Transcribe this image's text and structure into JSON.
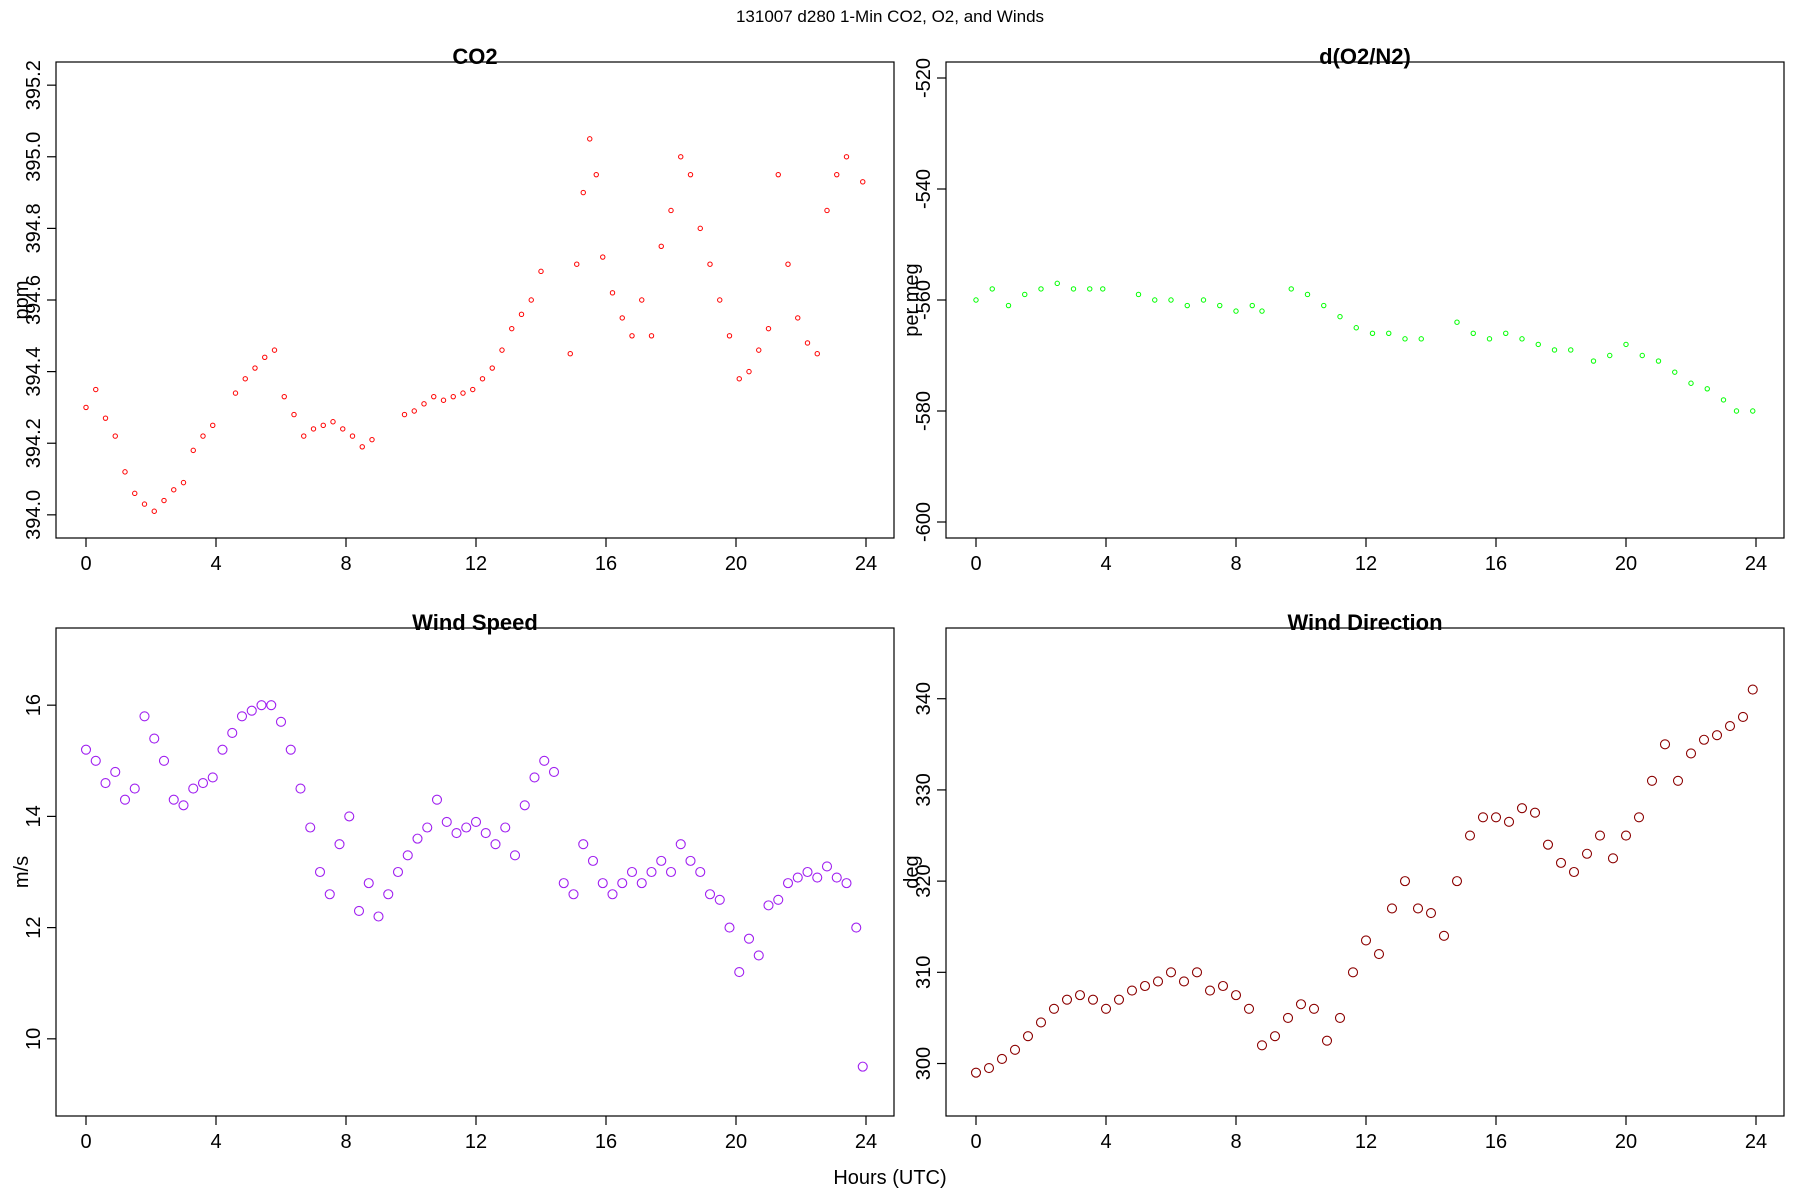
{
  "figure_title": "131007   d280   1-Min CO2, O2, and Winds",
  "shared_xlabel": "Hours (UTC)",
  "chart_data": [
    {
      "id": "co2",
      "type": "scatter",
      "title": "CO2",
      "xlabel": "",
      "ylabel": "ppm",
      "color": "#ff0000",
      "marker": "open-circle",
      "xlim": [
        0,
        24
      ],
      "ylim": [
        393.98,
        395.22
      ],
      "xticks": [
        0,
        4,
        8,
        12,
        16,
        20,
        24
      ],
      "yticks": [
        394.0,
        394.2,
        394.4,
        394.6,
        394.8,
        395.0,
        395.2
      ],
      "ytick_labels": [
        "394.0",
        "394.2",
        "394.4",
        "394.6",
        "394.8",
        "395.0",
        "395.2"
      ],
      "x": [
        0.0,
        0.3,
        0.6,
        0.9,
        1.2,
        1.5,
        1.8,
        2.1,
        2.4,
        2.7,
        3.0,
        3.3,
        3.6,
        3.9,
        4.6,
        4.9,
        5.2,
        5.5,
        5.8,
        6.1,
        6.4,
        6.7,
        7.0,
        7.3,
        7.6,
        7.9,
        8.2,
        8.5,
        8.8,
        9.8,
        10.1,
        10.4,
        10.7,
        11.0,
        11.3,
        11.6,
        11.9,
        12.2,
        12.5,
        12.8,
        13.1,
        13.4,
        13.7,
        14.0,
        14.9,
        15.1,
        15.3,
        15.5,
        15.7,
        15.9,
        16.2,
        16.5,
        16.8,
        17.1,
        17.4,
        17.7,
        18.0,
        18.3,
        18.6,
        18.9,
        19.2,
        19.5,
        19.8,
        20.1,
        20.4,
        20.7,
        21.0,
        21.3,
        21.6,
        21.9,
        22.2,
        22.5,
        22.8,
        23.1,
        23.4,
        23.9
      ],
      "y": [
        394.3,
        394.35,
        394.27,
        394.22,
        394.12,
        394.06,
        394.03,
        394.01,
        394.04,
        394.07,
        394.09,
        394.18,
        394.22,
        394.25,
        394.34,
        394.38,
        394.41,
        394.44,
        394.46,
        394.33,
        394.28,
        394.22,
        394.24,
        394.25,
        394.26,
        394.24,
        394.22,
        394.19,
        394.21,
        394.28,
        394.29,
        394.31,
        394.33,
        394.32,
        394.33,
        394.34,
        394.35,
        394.38,
        394.41,
        394.46,
        394.52,
        394.56,
        394.6,
        394.68,
        394.45,
        394.7,
        394.9,
        395.05,
        394.95,
        394.72,
        394.62,
        394.55,
        394.5,
        394.6,
        394.5,
        394.75,
        394.85,
        395.0,
        394.95,
        394.8,
        394.7,
        394.6,
        394.5,
        394.38,
        394.4,
        394.46,
        394.52,
        394.95,
        394.7,
        394.55,
        394.48,
        394.45,
        394.85,
        394.95,
        395.0,
        394.93
      ]
    },
    {
      "id": "o2n2",
      "type": "scatter",
      "title": "d(O2/N2)",
      "xlabel": "",
      "ylabel": "per meg",
      "color": "#00ff00",
      "marker": "open-circle",
      "xlim": [
        0,
        24
      ],
      "ylim": [
        -600,
        -520
      ],
      "xticks": [
        0,
        4,
        8,
        12,
        16,
        20,
        24
      ],
      "yticks": [
        -600,
        -580,
        -560,
        -540,
        -520
      ],
      "ytick_labels": [
        "-600",
        "-580",
        "-560",
        "-540",
        "-520"
      ],
      "x": [
        0.0,
        0.5,
        1.0,
        1.5,
        2.0,
        2.5,
        3.0,
        3.5,
        3.9,
        5.0,
        5.5,
        6.0,
        6.5,
        7.0,
        7.5,
        8.0,
        8.5,
        8.8,
        9.7,
        10.2,
        10.7,
        11.2,
        11.7,
        12.2,
        12.7,
        13.2,
        13.7,
        14.8,
        15.3,
        15.8,
        16.3,
        16.8,
        17.3,
        17.8,
        18.3,
        19.0,
        19.5,
        20.0,
        20.5,
        21.0,
        21.5,
        22.0,
        22.5,
        23.0,
        23.4,
        23.9
      ],
      "y": [
        -560,
        -558,
        -561,
        -559,
        -558,
        -557,
        -558,
        -558,
        -558,
        -559,
        -560,
        -560,
        -561,
        -560,
        -561,
        -562,
        -561,
        -562,
        -558,
        -559,
        -561,
        -563,
        -565,
        -566,
        -566,
        -567,
        -567,
        -564,
        -566,
        -567,
        -566,
        -567,
        -568,
        -569,
        -569,
        -571,
        -570,
        -568,
        -570,
        -571,
        -573,
        -575,
        -576,
        -578,
        -580,
        -580
      ]
    },
    {
      "id": "wspd",
      "type": "scatter",
      "title": "Wind Speed",
      "xlabel": "",
      "ylabel": "m/s",
      "color": "#a020f0",
      "marker": "open-circle",
      "xlim": [
        0,
        24
      ],
      "ylim": [
        8.9,
        17.1
      ],
      "xticks": [
        0,
        4,
        8,
        12,
        16,
        20,
        24
      ],
      "yticks": [
        10,
        12,
        14,
        16
      ],
      "ytick_labels": [
        "10",
        "12",
        "14",
        "16"
      ],
      "x": [
        0.0,
        0.3,
        0.6,
        0.9,
        1.2,
        1.5,
        1.8,
        2.1,
        2.4,
        2.7,
        3.0,
        3.3,
        3.6,
        3.9,
        4.2,
        4.5,
        4.8,
        5.1,
        5.4,
        5.7,
        6.0,
        6.3,
        6.6,
        6.9,
        7.2,
        7.5,
        7.8,
        8.1,
        8.4,
        8.7,
        9.0,
        9.3,
        9.6,
        9.9,
        10.2,
        10.5,
        10.8,
        11.1,
        11.4,
        11.7,
        12.0,
        12.3,
        12.6,
        12.9,
        13.2,
        13.5,
        13.8,
        14.1,
        14.4,
        14.7,
        15.0,
        15.3,
        15.6,
        15.9,
        16.2,
        16.5,
        16.8,
        17.1,
        17.4,
        17.7,
        18.0,
        18.3,
        18.6,
        18.9,
        19.2,
        19.5,
        19.8,
        20.1,
        20.4,
        20.7,
        21.0,
        21.3,
        21.6,
        21.9,
        22.2,
        22.5,
        22.8,
        23.1,
        23.4,
        23.7,
        23.9
      ],
      "y": [
        15.2,
        15.0,
        14.6,
        14.8,
        14.3,
        14.5,
        15.8,
        15.4,
        15.0,
        14.3,
        14.2,
        14.5,
        14.6,
        14.7,
        15.2,
        15.5,
        15.8,
        15.9,
        16.0,
        16.0,
        15.7,
        15.2,
        14.5,
        13.8,
        13.0,
        12.6,
        13.5,
        14.0,
        12.3,
        12.8,
        12.2,
        12.6,
        13.0,
        13.3,
        13.6,
        13.8,
        14.3,
        13.9,
        13.7,
        13.8,
        13.9,
        13.7,
        13.5,
        13.8,
        13.3,
        14.2,
        14.7,
        15.0,
        14.8,
        12.8,
        12.6,
        13.5,
        13.2,
        12.8,
        12.6,
        12.8,
        13.0,
        12.8,
        13.0,
        13.2,
        13.0,
        13.5,
        13.2,
        13.0,
        12.6,
        12.5,
        12.0,
        11.2,
        11.8,
        11.5,
        12.4,
        12.5,
        12.8,
        12.9,
        13.0,
        12.9,
        13.1,
        12.9,
        12.8,
        12.0,
        9.5
      ]
    },
    {
      "id": "wdir",
      "type": "scatter",
      "title": "Wind Direction",
      "xlabel": "",
      "ylabel": "deg",
      "color": "#8b0000",
      "marker": "open-circle",
      "xlim": [
        0,
        24
      ],
      "ylim": [
        296,
        346
      ],
      "xticks": [
        0,
        4,
        8,
        12,
        16,
        20,
        24
      ],
      "yticks": [
        300,
        310,
        320,
        330,
        340
      ],
      "ytick_labels": [
        "300",
        "310",
        "320",
        "330",
        "340"
      ],
      "x": [
        0.0,
        0.4,
        0.8,
        1.2,
        1.6,
        2.0,
        2.4,
        2.8,
        3.2,
        3.6,
        4.0,
        4.4,
        4.8,
        5.2,
        5.6,
        6.0,
        6.4,
        6.8,
        7.2,
        7.6,
        8.0,
        8.4,
        8.8,
        9.2,
        9.6,
        10.0,
        10.4,
        10.8,
        11.2,
        11.6,
        12.0,
        12.4,
        12.8,
        13.2,
        13.6,
        14.0,
        14.4,
        14.8,
        15.2,
        15.6,
        16.0,
        16.4,
        16.8,
        17.2,
        17.6,
        18.0,
        18.4,
        18.8,
        19.2,
        19.6,
        20.0,
        20.4,
        20.8,
        21.2,
        21.6,
        22.0,
        22.4,
        22.8,
        23.2,
        23.6,
        23.9
      ],
      "y": [
        299,
        299.5,
        300.5,
        301.5,
        303,
        304.5,
        306,
        307,
        307.5,
        307,
        306,
        307,
        308,
        308.5,
        309,
        310,
        309,
        310,
        308,
        308.5,
        307.5,
        306,
        302,
        303,
        305,
        306.5,
        306,
        302.5,
        305,
        310,
        313.5,
        312,
        317,
        320,
        317,
        316.5,
        314,
        320,
        325,
        327,
        327,
        326.5,
        328,
        327.5,
        324,
        322,
        321,
        323,
        325,
        322.5,
        325,
        327,
        331,
        335,
        331,
        334,
        335.5,
        336,
        337,
        338,
        341
      ]
    }
  ]
}
